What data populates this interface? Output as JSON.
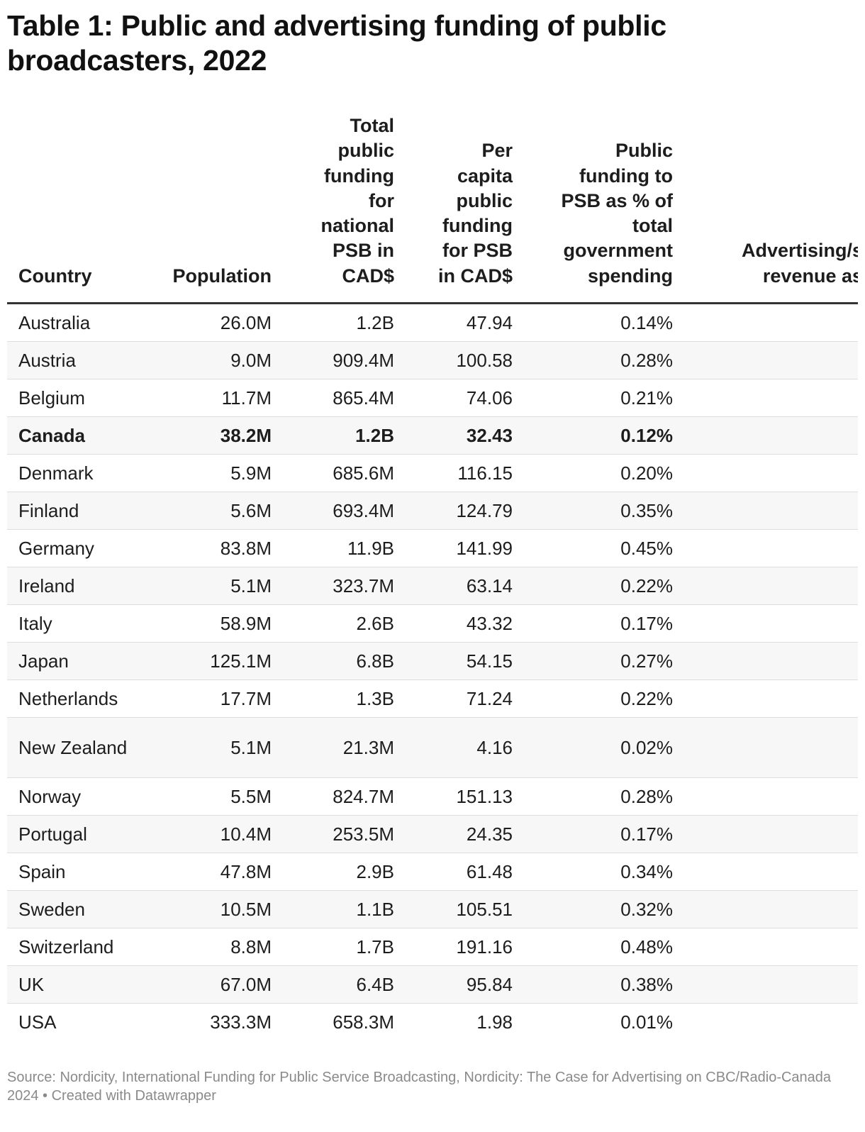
{
  "title": "Table 1: Public and advertising funding of public broadcasters, 2022",
  "columns": {
    "country": "Country",
    "population": "Population",
    "total_funding": "Total public funding for national PSB in CAD$",
    "per_capita": "Per capita public funding for PSB in CAD$",
    "pct_gov": "Public funding to PSB as % of total government spending",
    "advertising": "Advertising/s revenue as"
  },
  "rows": [
    {
      "country": "Australia",
      "population": "26.0M",
      "total": "1.2B",
      "per_capita": "47.94",
      "pct": "0.14%"
    },
    {
      "country": "Austria",
      "population": "9.0M",
      "total": "909.4M",
      "per_capita": "100.58",
      "pct": "0.28%"
    },
    {
      "country": "Belgium",
      "population": "11.7M",
      "total": "865.4M",
      "per_capita": "74.06",
      "pct": "0.21%"
    },
    {
      "country": "Canada",
      "population": "38.2M",
      "total": "1.2B",
      "per_capita": "32.43",
      "pct": "0.12%"
    },
    {
      "country": "Denmark",
      "population": "5.9M",
      "total": "685.6M",
      "per_capita": "116.15",
      "pct": "0.20%"
    },
    {
      "country": "Finland",
      "population": "5.6M",
      "total": "693.4M",
      "per_capita": "124.79",
      "pct": "0.35%"
    },
    {
      "country": "Germany",
      "population": "83.8M",
      "total": "11.9B",
      "per_capita": "141.99",
      "pct": "0.45%"
    },
    {
      "country": "Ireland",
      "population": "5.1M",
      "total": "323.7M",
      "per_capita": "63.14",
      "pct": "0.22%"
    },
    {
      "country": "Italy",
      "population": "58.9M",
      "total": "2.6B",
      "per_capita": "43.32",
      "pct": "0.17%"
    },
    {
      "country": "Japan",
      "population": "125.1M",
      "total": "6.8B",
      "per_capita": "54.15",
      "pct": "0.27%"
    },
    {
      "country": "Netherlands",
      "population": "17.7M",
      "total": "1.3B",
      "per_capita": "71.24",
      "pct": "0.22%"
    },
    {
      "country": "New Zealand",
      "population": "5.1M",
      "total": "21.3M",
      "per_capita": "4.16",
      "pct": "0.02%"
    },
    {
      "country": "Norway",
      "population": "5.5M",
      "total": "824.7M",
      "per_capita": "151.13",
      "pct": "0.28%"
    },
    {
      "country": "Portugal",
      "population": "10.4M",
      "total": "253.5M",
      "per_capita": "24.35",
      "pct": "0.17%"
    },
    {
      "country": "Spain",
      "population": "47.8M",
      "total": "2.9B",
      "per_capita": "61.48",
      "pct": "0.34%"
    },
    {
      "country": "Sweden",
      "population": "10.5M",
      "total": "1.1B",
      "per_capita": "105.51",
      "pct": "0.32%"
    },
    {
      "country": "Switzerland",
      "population": "8.8M",
      "total": "1.7B",
      "per_capita": "191.16",
      "pct": "0.48%"
    },
    {
      "country": "UK",
      "population": "67.0M",
      "total": "6.4B",
      "per_capita": "95.84",
      "pct": "0.38%"
    },
    {
      "country": "USA",
      "population": "333.3M",
      "total": "658.3M",
      "per_capita": "1.98",
      "pct": "0.01%"
    }
  ],
  "footer": "Source: Nordicity, International Funding for Public Service Broadcasting, Nordicity: The Case for Advertising on CBC/Radio-Canada 2024 • Created with Datawrapper"
}
